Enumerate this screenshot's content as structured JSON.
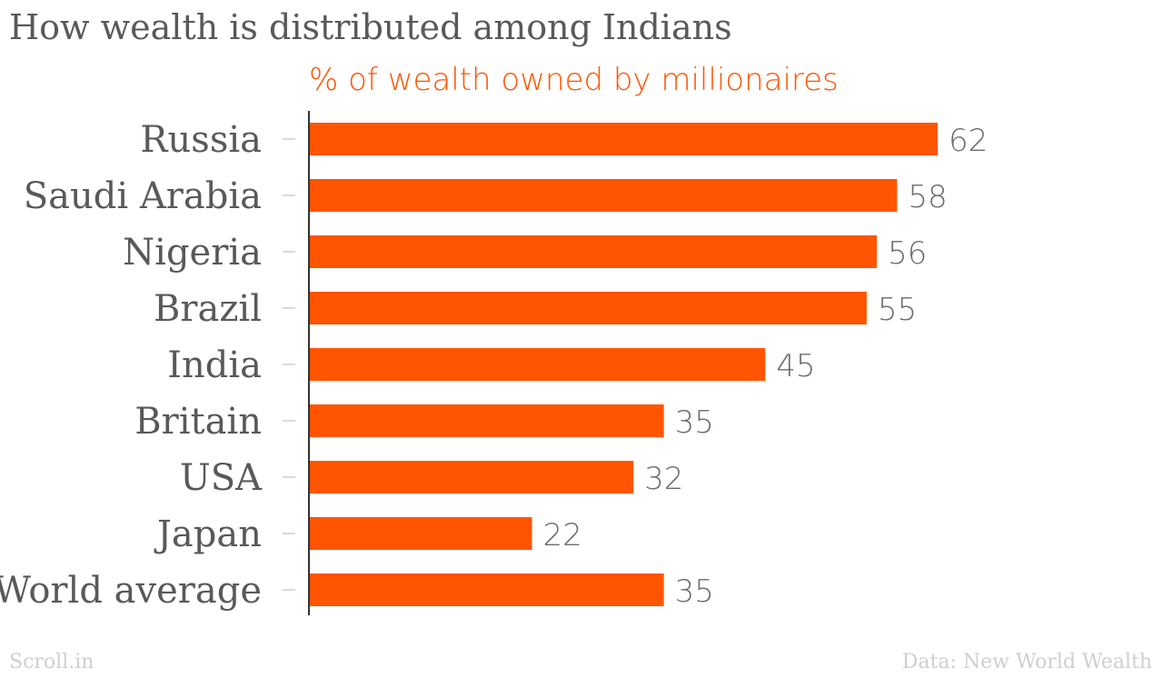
{
  "title": "How wealth is distributed among Indians",
  "subtitle": "% of wealth owned by millionaires",
  "footer": {
    "brand": "Scroll.in",
    "source": "Data: New World Wealth"
  },
  "colors": {
    "bar": "#ff5500",
    "label": "#595959",
    "axis": "#333333"
  },
  "chart_data": {
    "type": "bar",
    "orientation": "horizontal",
    "title": "How wealth is distributed among Indians",
    "subtitle": "% of wealth owned by millionaires",
    "categories": [
      "Russia",
      "Saudi Arabia",
      "Nigeria",
      "Brazil",
      "India",
      "Britain",
      "USA",
      "Japan",
      "World average"
    ],
    "values": [
      62,
      58,
      56,
      55,
      45,
      35,
      32,
      22,
      35
    ],
    "xlim": [
      0,
      62
    ],
    "grid": false,
    "data_labels": true
  }
}
